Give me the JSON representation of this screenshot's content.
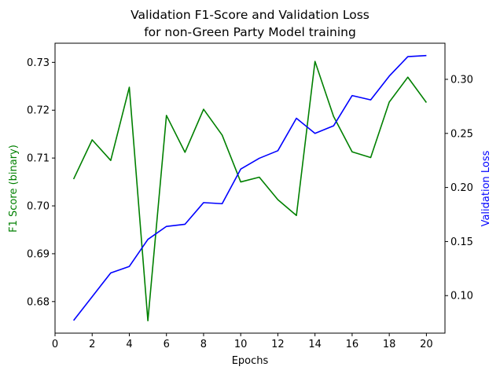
{
  "chart_data": {
    "type": "line",
    "title_lines": [
      "Validation F1-Score and Validation Loss",
      "for non-Green Party Model training"
    ],
    "xlabel": "Epochs",
    "ylabel_left": "F1 Score (binary)",
    "ylabel_right": "Validation Loss",
    "x": [
      1,
      2,
      3,
      4,
      5,
      6,
      7,
      8,
      9,
      10,
      11,
      12,
      13,
      14,
      15,
      16,
      17,
      18,
      19,
      20
    ],
    "xlim": [
      0,
      21
    ],
    "x_ticks": [
      0,
      2,
      4,
      6,
      8,
      10,
      12,
      14,
      16,
      18,
      20
    ],
    "ylim_left": [
      0.6734,
      0.734
    ],
    "y_ticks_left": [
      0.68,
      0.69,
      0.7,
      0.71,
      0.72,
      0.73
    ],
    "y_tick_labels_left": [
      "0.68",
      "0.69",
      "0.70",
      "0.71",
      "0.72",
      "0.73"
    ],
    "ylim_right": [
      0.0653,
      0.3334
    ],
    "y_ticks_right": [
      0.1,
      0.15,
      0.2,
      0.25,
      0.3
    ],
    "y_tick_labels_right": [
      "0.10",
      "0.15",
      "0.20",
      "0.25",
      "0.30"
    ],
    "grid": false,
    "series": [
      {
        "axis": "left",
        "color": "#008000",
        "values": [
          0.7056,
          0.7138,
          0.7095,
          0.7248,
          0.676,
          0.7189,
          0.7112,
          0.7202,
          0.7148,
          0.705,
          0.706,
          0.7013,
          0.698,
          0.7302,
          0.7187,
          0.7113,
          0.7101,
          0.7217,
          0.7269,
          0.7216
        ]
      },
      {
        "axis": "right",
        "color": "#0000ff",
        "values": [
          0.077,
          0.099,
          0.121,
          0.127,
          0.152,
          0.164,
          0.166,
          0.186,
          0.185,
          0.217,
          0.227,
          0.234,
          0.264,
          0.25,
          0.257,
          0.285,
          0.281,
          0.303,
          0.321,
          0.322
        ]
      }
    ]
  }
}
